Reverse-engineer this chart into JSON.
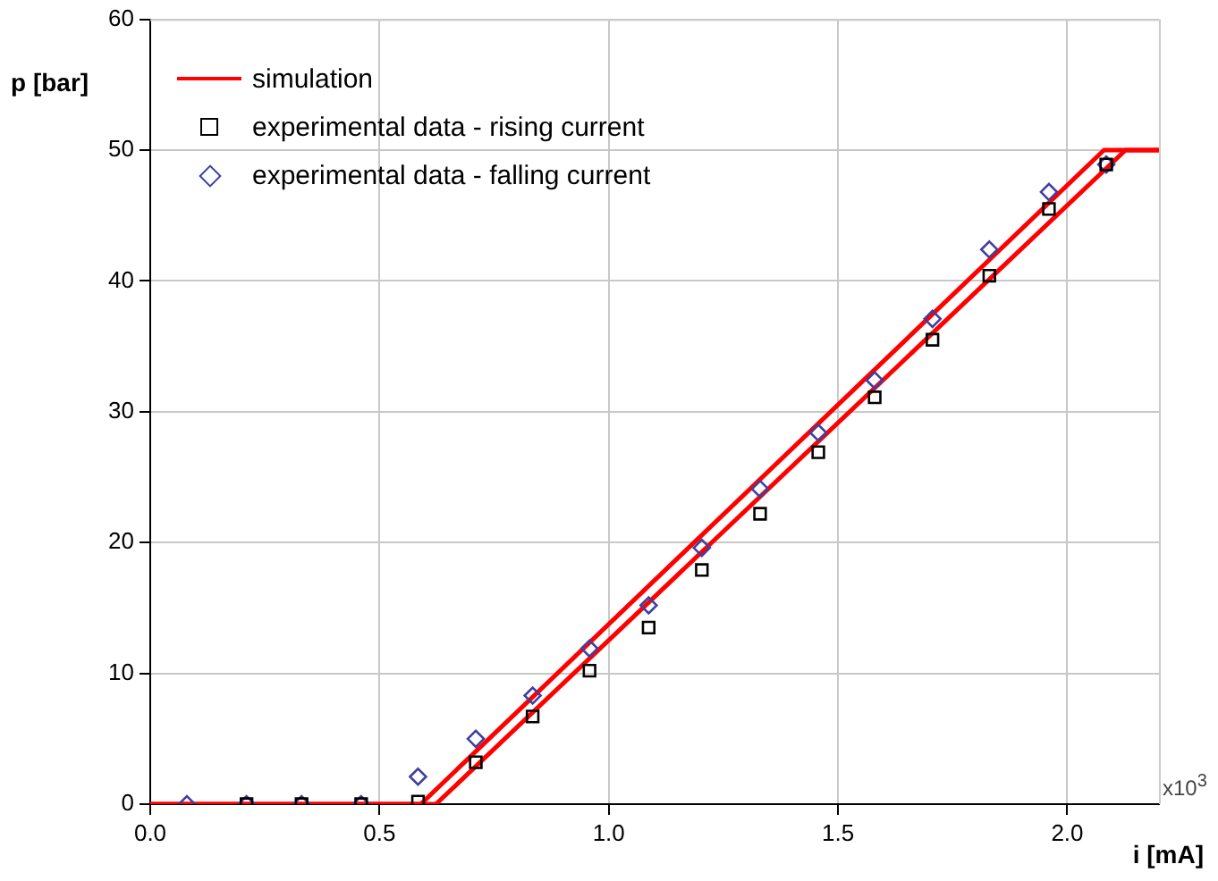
{
  "chart_data": {
    "type": "line",
    "xlabel": "i [mA]",
    "ylabel": "p [bar]",
    "annotations": [
      "x10$^{3}$"
    ],
    "xlim": [
      0,
      2.2
    ],
    "xticks": [
      {
        "value": 0,
        "label": "0.0"
      },
      {
        "value": 0.5,
        "label": "0.5"
      },
      {
        "value": 1,
        "label": "1.0"
      },
      {
        "value": 1.5,
        "label": "1.5"
      },
      {
        "value": 2,
        "label": "2.0"
      }
    ],
    "ylim": [
      0,
      60
    ],
    "yticks": [
      0,
      10,
      20,
      30,
      40,
      50,
      60
    ],
    "grid": true,
    "legend": "top left",
    "series": [
      {
        "name": "simulation",
        "color": "#ff0000",
        "marker": "none",
        "x": [
          0,
          0.59,
          2.08,
          2.2
        ],
        "values": [
          0,
          0,
          50,
          50
        ]
      },
      {
        "color": "#ff0000",
        "marker": "none",
        "x": [
          0,
          0.623,
          2.127,
          2.2
        ],
        "values": [
          0,
          0,
          50,
          50
        ]
      },
      {
        "name": "experimental data - rising current",
        "type": "scatter",
        "color": "#000000",
        "marker": "square",
        "x": [
          0.21,
          0.33,
          0.46,
          0.584,
          0.71,
          0.834,
          0.958,
          1.087,
          1.203,
          1.33,
          1.457,
          1.58,
          1.706,
          1.83,
          1.96,
          2.085
        ],
        "values": [
          0,
          0,
          0,
          0.2,
          3.2,
          6.7,
          10.2,
          13.5,
          17.9,
          22.2,
          26.9,
          31.1,
          35.5,
          40.4,
          45.5,
          48.9
        ]
      },
      {
        "name": "experimental data - falling current",
        "type": "scatter",
        "color": "#3f3fa0",
        "marker": "diamond",
        "x": [
          0.08,
          0.21,
          0.33,
          0.46,
          0.584,
          0.71,
          0.834,
          0.958,
          1.087,
          1.203,
          1.33,
          1.457,
          1.58,
          1.706,
          1.83,
          1.96,
          2.085
        ],
        "values": [
          0,
          0,
          0,
          0,
          2.1,
          5.0,
          8.3,
          11.9,
          15.2,
          19.6,
          24.1,
          28.4,
          32.4,
          37.1,
          42.4,
          46.8,
          48.9
        ]
      }
    ]
  }
}
